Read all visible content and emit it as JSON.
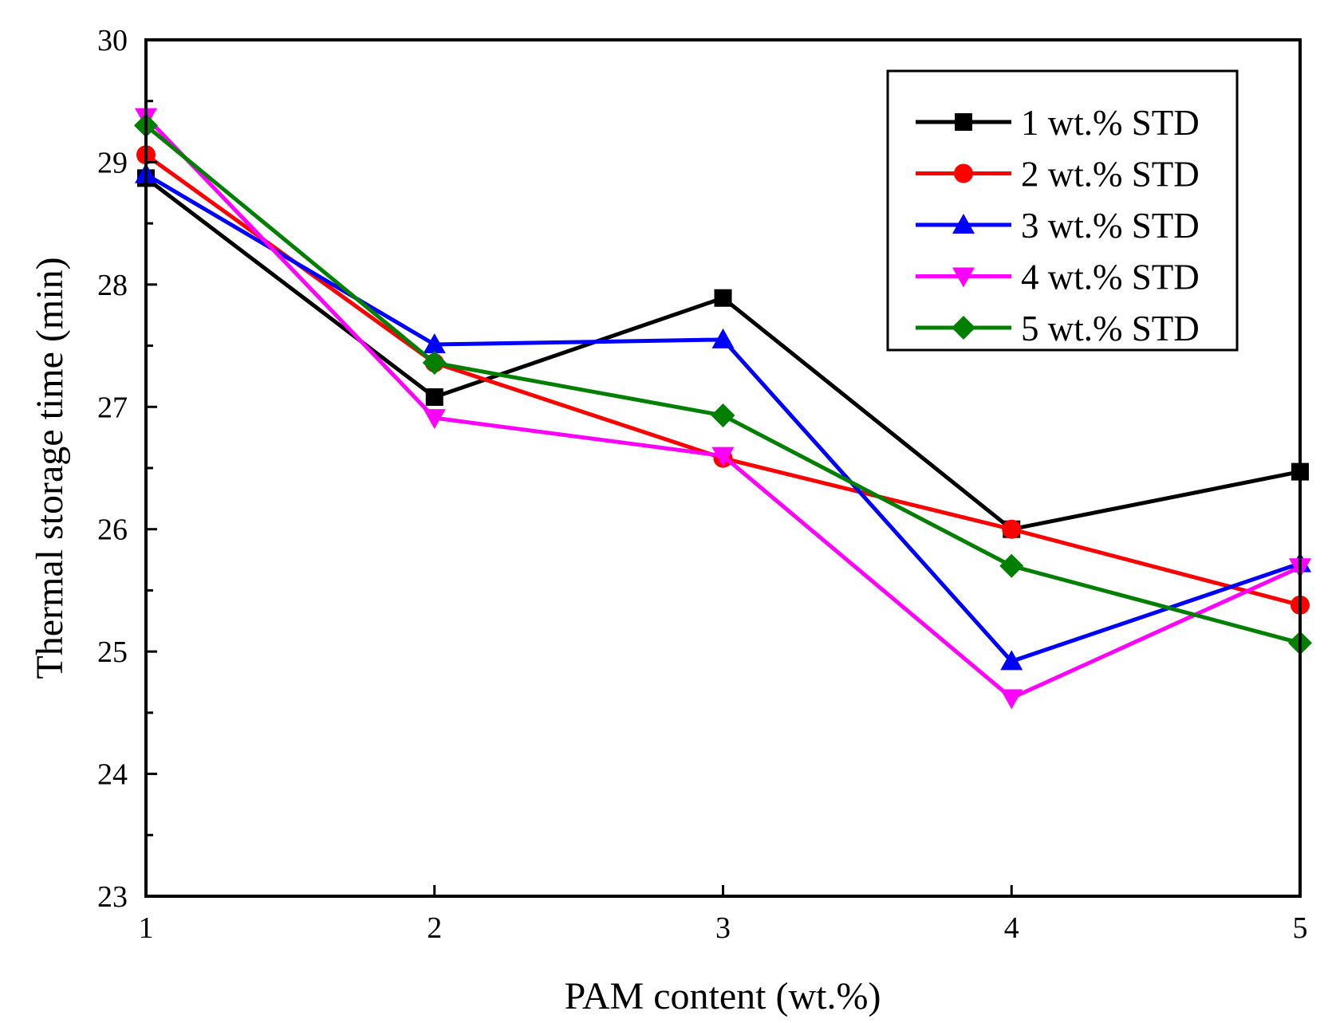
{
  "chart_data": {
    "type": "line",
    "title": "",
    "xlabel": "PAM content (wt.%)",
    "ylabel": "Thermal storage time (min)",
    "xlim": [
      1,
      5
    ],
    "ylim": [
      23,
      30
    ],
    "x": [
      1,
      2,
      3,
      4,
      5
    ],
    "x_tick_labels": [
      "1",
      "2",
      "3",
      "4",
      "5"
    ],
    "y_ticks": [
      23,
      24,
      25,
      26,
      27,
      28,
      29,
      30
    ],
    "y_tick_labels": [
      "23",
      "24",
      "25",
      "26",
      "27",
      "28",
      "29",
      "30"
    ],
    "grid": false,
    "legend_position": "top-right",
    "series": [
      {
        "name": "1 wt.% STD",
        "color": "#000000",
        "marker": "square",
        "values": [
          28.87,
          27.08,
          27.89,
          26.0,
          26.47
        ]
      },
      {
        "name": "2 wt.% STD",
        "color": "#ff0000",
        "marker": "circle",
        "values": [
          29.06,
          27.36,
          26.58,
          26.0,
          25.38
        ]
      },
      {
        "name": "3 wt.% STD",
        "color": "#0000ff",
        "marker": "triangle-up",
        "values": [
          28.9,
          27.51,
          27.55,
          24.92,
          25.72
        ]
      },
      {
        "name": "4 wt.% STD",
        "color": "#ff00ff",
        "marker": "triangle-down",
        "values": [
          29.37,
          26.91,
          26.6,
          24.62,
          25.69
        ]
      },
      {
        "name": "5 wt.% STD",
        "color": "#007f00",
        "marker": "diamond",
        "values": [
          29.3,
          27.36,
          26.93,
          25.7,
          25.07
        ]
      }
    ]
  }
}
